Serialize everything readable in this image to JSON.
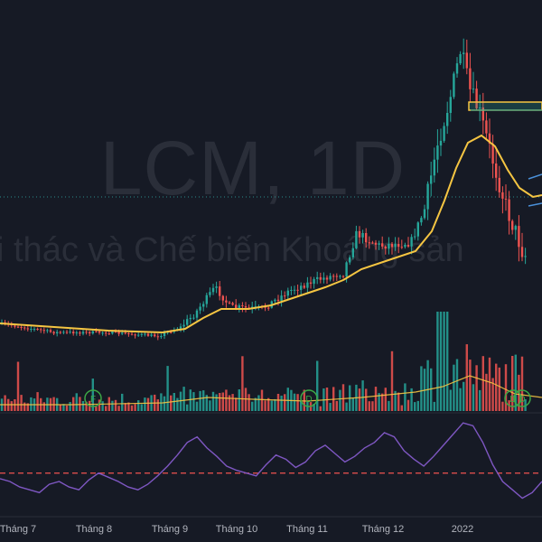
{
  "watermark": {
    "symbol_line": "LCM, 1D",
    "name_line": "i thác và Chế biến Khoáng sản"
  },
  "colors": {
    "background": "#161a25",
    "up": "#26a69a",
    "down": "#ef5350",
    "ma": "#f5c542",
    "rsi": "#7e57c2",
    "rsi_level": "#ef5350",
    "grid_dots": "#2a8c8c",
    "marker": "#3ca846"
  },
  "chart_data": [
    {
      "type": "candlestick",
      "title": "",
      "x_ticks": [
        "Tháng 7",
        "Tháng 8",
        "Tháng 9",
        "Tháng 10",
        "Tháng 11",
        "Tháng 12",
        "2022"
      ],
      "price_ma_shape": [
        0.64,
        0.64,
        0.64,
        0.63,
        0.63,
        0.62,
        0.61,
        0.6,
        0.58,
        0.56,
        0.52,
        0.47,
        0.42,
        0.4,
        0.41,
        0.42,
        0.45,
        0.48,
        0.52,
        0.55,
        0.6,
        0.66,
        0.78,
        0.98,
        1.5,
        2.1,
        2.7,
        3.1,
        3.0,
        2.4,
        2.0
      ],
      "indicator_marks": [
        "F",
        "D",
        "D",
        "D"
      ],
      "series": [
        {
          "name": "",
          "kind": "price_ohlc"
        },
        {
          "name": "",
          "kind": "moving_average"
        }
      ]
    },
    {
      "type": "bar",
      "title": "",
      "series": [
        {
          "name": "",
          "kind": "volume"
        }
      ]
    },
    {
      "type": "line",
      "title": "",
      "series": [
        {
          "name": "",
          "kind": "rsi"
        }
      ],
      "values": [
        46,
        44,
        40,
        38,
        36,
        42,
        44,
        40,
        38,
        45,
        50,
        47,
        44,
        40,
        38,
        42,
        48,
        55,
        63,
        72,
        76,
        68,
        62,
        55,
        52,
        50,
        48,
        56,
        63,
        60,
        54,
        58,
        66,
        70,
        64,
        58,
        62,
        68,
        72,
        79,
        76,
        66,
        60,
        55,
        62,
        70,
        78,
        86,
        84,
        72,
        56,
        44,
        38,
        32,
        36,
        44
      ],
      "reference_line": 50
    }
  ]
}
